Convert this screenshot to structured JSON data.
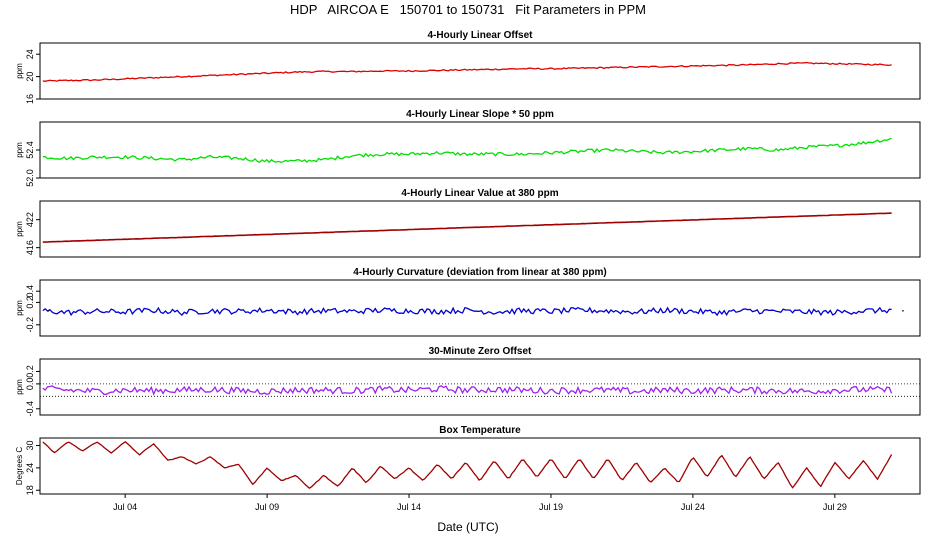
{
  "title": "HDP   AIRCOA E   150701 to 150731   Fit Parameters in PPM",
  "xlabel": "Date (UTC)",
  "xticks": [
    "Jul 04",
    "Jul 09",
    "Jul 14",
    "Jul 19",
    "Jul 24",
    "Jul 29"
  ],
  "chart_data": [
    {
      "type": "line",
      "title": "4-Hourly Linear Offset",
      "ylabel": "ppm",
      "color": "#e00000",
      "x_range_days": [
        1.0,
        32.0
      ],
      "ylim": [
        16,
        26
      ],
      "yticks": [
        "16",
        "20",
        "24"
      ],
      "ytick_values": [
        16,
        20,
        24
      ],
      "x": [
        1.1,
        2.0,
        3.0,
        4.0,
        5.0,
        6.0,
        7.0,
        8.0,
        9.0,
        10.0,
        11.0,
        12.0,
        13.0,
        14.0,
        15.0,
        16.0,
        17.0,
        18.0,
        19.0,
        20.0,
        21.0,
        22.0,
        23.0,
        24.0,
        25.0,
        26.0,
        27.0,
        28.0,
        29.0,
        30.0,
        31.0
      ],
      "values": [
        19.2,
        19.3,
        19.4,
        19.6,
        19.8,
        20.0,
        20.2,
        20.4,
        20.6,
        20.8,
        20.9,
        20.9,
        21.0,
        21.0,
        21.1,
        21.2,
        21.3,
        21.4,
        21.4,
        21.5,
        21.6,
        21.7,
        21.8,
        21.9,
        22.0,
        22.1,
        22.3,
        22.4,
        22.3,
        22.2,
        22.1
      ]
    },
    {
      "type": "line",
      "title": "4-Hourly Linear Slope * 50 ppm",
      "ylabel": "ppm",
      "color": "#00e000",
      "x_range_days": [
        1.0,
        32.0
      ],
      "ylim": [
        52.0,
        52.8
      ],
      "yticks": [
        "52.0",
        "52.4"
      ],
      "ytick_values": [
        52.0,
        52.4
      ],
      "x": [
        1.1,
        2.0,
        3.0,
        4.0,
        5.0,
        6.0,
        7.0,
        8.0,
        9.0,
        10.0,
        11.0,
        12.0,
        13.0,
        14.0,
        15.0,
        16.0,
        17.0,
        18.0,
        19.0,
        20.0,
        21.0,
        22.0,
        23.0,
        24.0,
        25.0,
        26.0,
        27.0,
        28.0,
        29.0,
        30.0,
        31.0
      ],
      "values": [
        52.3,
        52.28,
        52.3,
        52.3,
        52.28,
        52.26,
        52.3,
        52.28,
        52.24,
        52.24,
        52.26,
        52.32,
        52.34,
        52.34,
        52.36,
        52.34,
        52.34,
        52.34,
        52.36,
        52.38,
        52.4,
        52.38,
        52.36,
        52.38,
        52.4,
        52.42,
        52.4,
        52.44,
        52.46,
        52.5,
        52.56
      ]
    },
    {
      "type": "line",
      "title": "4-Hourly Linear Value at 380 ppm",
      "ylabel": "ppm",
      "color": "#a00000",
      "x_range_days": [
        1.0,
        32.0
      ],
      "ylim": [
        414,
        426
      ],
      "yticks": [
        "416",
        "422"
      ],
      "ytick_values": [
        416,
        422
      ],
      "x": [
        1.1,
        31.0
      ],
      "values": [
        417.2,
        423.4
      ]
    },
    {
      "type": "line",
      "title": "4-Hourly Curvature (deviation from linear at 380 ppm)",
      "ylabel": "ppm",
      "color": "#0000d0",
      "x_range_days": [
        1.0,
        32.0
      ],
      "ylim": [
        -0.4,
        0.6
      ],
      "yticks": [
        "-0.2",
        "0.2",
        "0.4"
      ],
      "ytick_values": [
        -0.2,
        0.2,
        0.4
      ],
      "x": [
        1.1,
        2.0,
        3.0,
        4.0,
        5.0,
        6.0,
        7.0,
        8.0,
        9.0,
        10.0,
        11.0,
        12.0,
        13.0,
        14.0,
        15.0,
        16.0,
        17.0,
        18.0,
        19.0,
        20.0,
        21.0,
        22.0,
        23.0,
        24.0,
        25.0,
        26.0,
        27.0,
        28.0,
        29.0,
        30.0,
        31.0
      ],
      "values": [
        0.05,
        0.02,
        0.04,
        0.03,
        0.06,
        0.02,
        0.05,
        0.04,
        0.06,
        0.03,
        0.05,
        0.04,
        0.06,
        0.05,
        0.04,
        0.06,
        0.03,
        0.05,
        0.04,
        0.06,
        0.05,
        0.03,
        0.06,
        0.04,
        0.02,
        0.05,
        0.04,
        0.03,
        0.02,
        0.05,
        0.06
      ]
    },
    {
      "type": "line",
      "title": "30-Minute Zero Offset",
      "ylabel": "ppm",
      "color": "#a020f0",
      "x_range_days": [
        1.0,
        32.0
      ],
      "ylim": [
        -0.5,
        0.4
      ],
      "yticks": [
        "-0.4",
        "0.0",
        "0.2"
      ],
      "ytick_values": [
        -0.4,
        0.0,
        0.2
      ],
      "reference_lines": [
        0.0,
        -0.2
      ],
      "x": [
        1.1,
        2.0,
        3.0,
        4.0,
        5.0,
        6.0,
        7.0,
        8.0,
        9.0,
        10.0,
        11.0,
        12.0,
        13.0,
        14.0,
        15.0,
        16.0,
        17.0,
        18.0,
        19.0,
        20.0,
        21.0,
        22.0,
        23.0,
        24.0,
        25.0,
        26.0,
        27.0,
        28.0,
        29.0,
        30.0,
        31.0
      ],
      "values": [
        -0.08,
        -0.1,
        -0.12,
        -0.1,
        -0.11,
        -0.1,
        -0.09,
        -0.11,
        -0.12,
        -0.1,
        -0.1,
        -0.11,
        -0.09,
        -0.1,
        -0.08,
        -0.1,
        -0.09,
        -0.1,
        -0.11,
        -0.1,
        -0.1,
        -0.12,
        -0.1,
        -0.11,
        -0.1,
        -0.1,
        -0.11,
        -0.12,
        -0.1,
        -0.09,
        -0.1
      ]
    },
    {
      "type": "line",
      "title": "Box Temperature",
      "ylabel": "Degrees C",
      "color": "#a00000",
      "x_range_days": [
        1.0,
        32.0
      ],
      "ylim": [
        17,
        32
      ],
      "yticks": [
        "18",
        "24",
        "30"
      ],
      "ytick_values": [
        18,
        24,
        30
      ],
      "x": [
        1.1,
        1.5,
        2.0,
        2.5,
        3.0,
        3.5,
        4.0,
        4.5,
        5.0,
        5.5,
        6.0,
        6.5,
        7.0,
        7.5,
        8.0,
        8.5,
        9.0,
        9.5,
        10.0,
        10.5,
        11.0,
        11.5,
        12.0,
        12.5,
        13.0,
        13.5,
        14.0,
        14.5,
        15.0,
        15.5,
        16.0,
        16.5,
        17.0,
        17.5,
        18.0,
        18.5,
        19.0,
        19.5,
        20.0,
        20.5,
        21.0,
        21.5,
        22.0,
        22.5,
        23.0,
        23.5,
        24.0,
        24.5,
        25.0,
        25.5,
        26.0,
        26.5,
        27.0,
        27.5,
        28.0,
        28.5,
        29.0,
        29.5,
        30.0,
        30.5,
        31.0
      ],
      "values": [
        31.0,
        28.0,
        31.0,
        28.5,
        31.0,
        28.0,
        31.0,
        27.5,
        30.5,
        26.0,
        27.0,
        25.0,
        27.0,
        24.0,
        25.0,
        19.5,
        24.0,
        20.5,
        22.0,
        18.5,
        22.0,
        19.0,
        24.0,
        20.0,
        24.5,
        21.0,
        24.0,
        20.5,
        25.0,
        21.0,
        25.5,
        20.5,
        26.0,
        21.0,
        26.5,
        21.5,
        26.5,
        21.0,
        26.5,
        21.0,
        26.5,
        20.5,
        25.5,
        20.0,
        24.0,
        20.0,
        27.0,
        21.5,
        27.5,
        21.5,
        27.0,
        21.0,
        25.5,
        18.5,
        24.0,
        19.0,
        25.5,
        21.0,
        26.0,
        21.0,
        27.5
      ]
    }
  ]
}
